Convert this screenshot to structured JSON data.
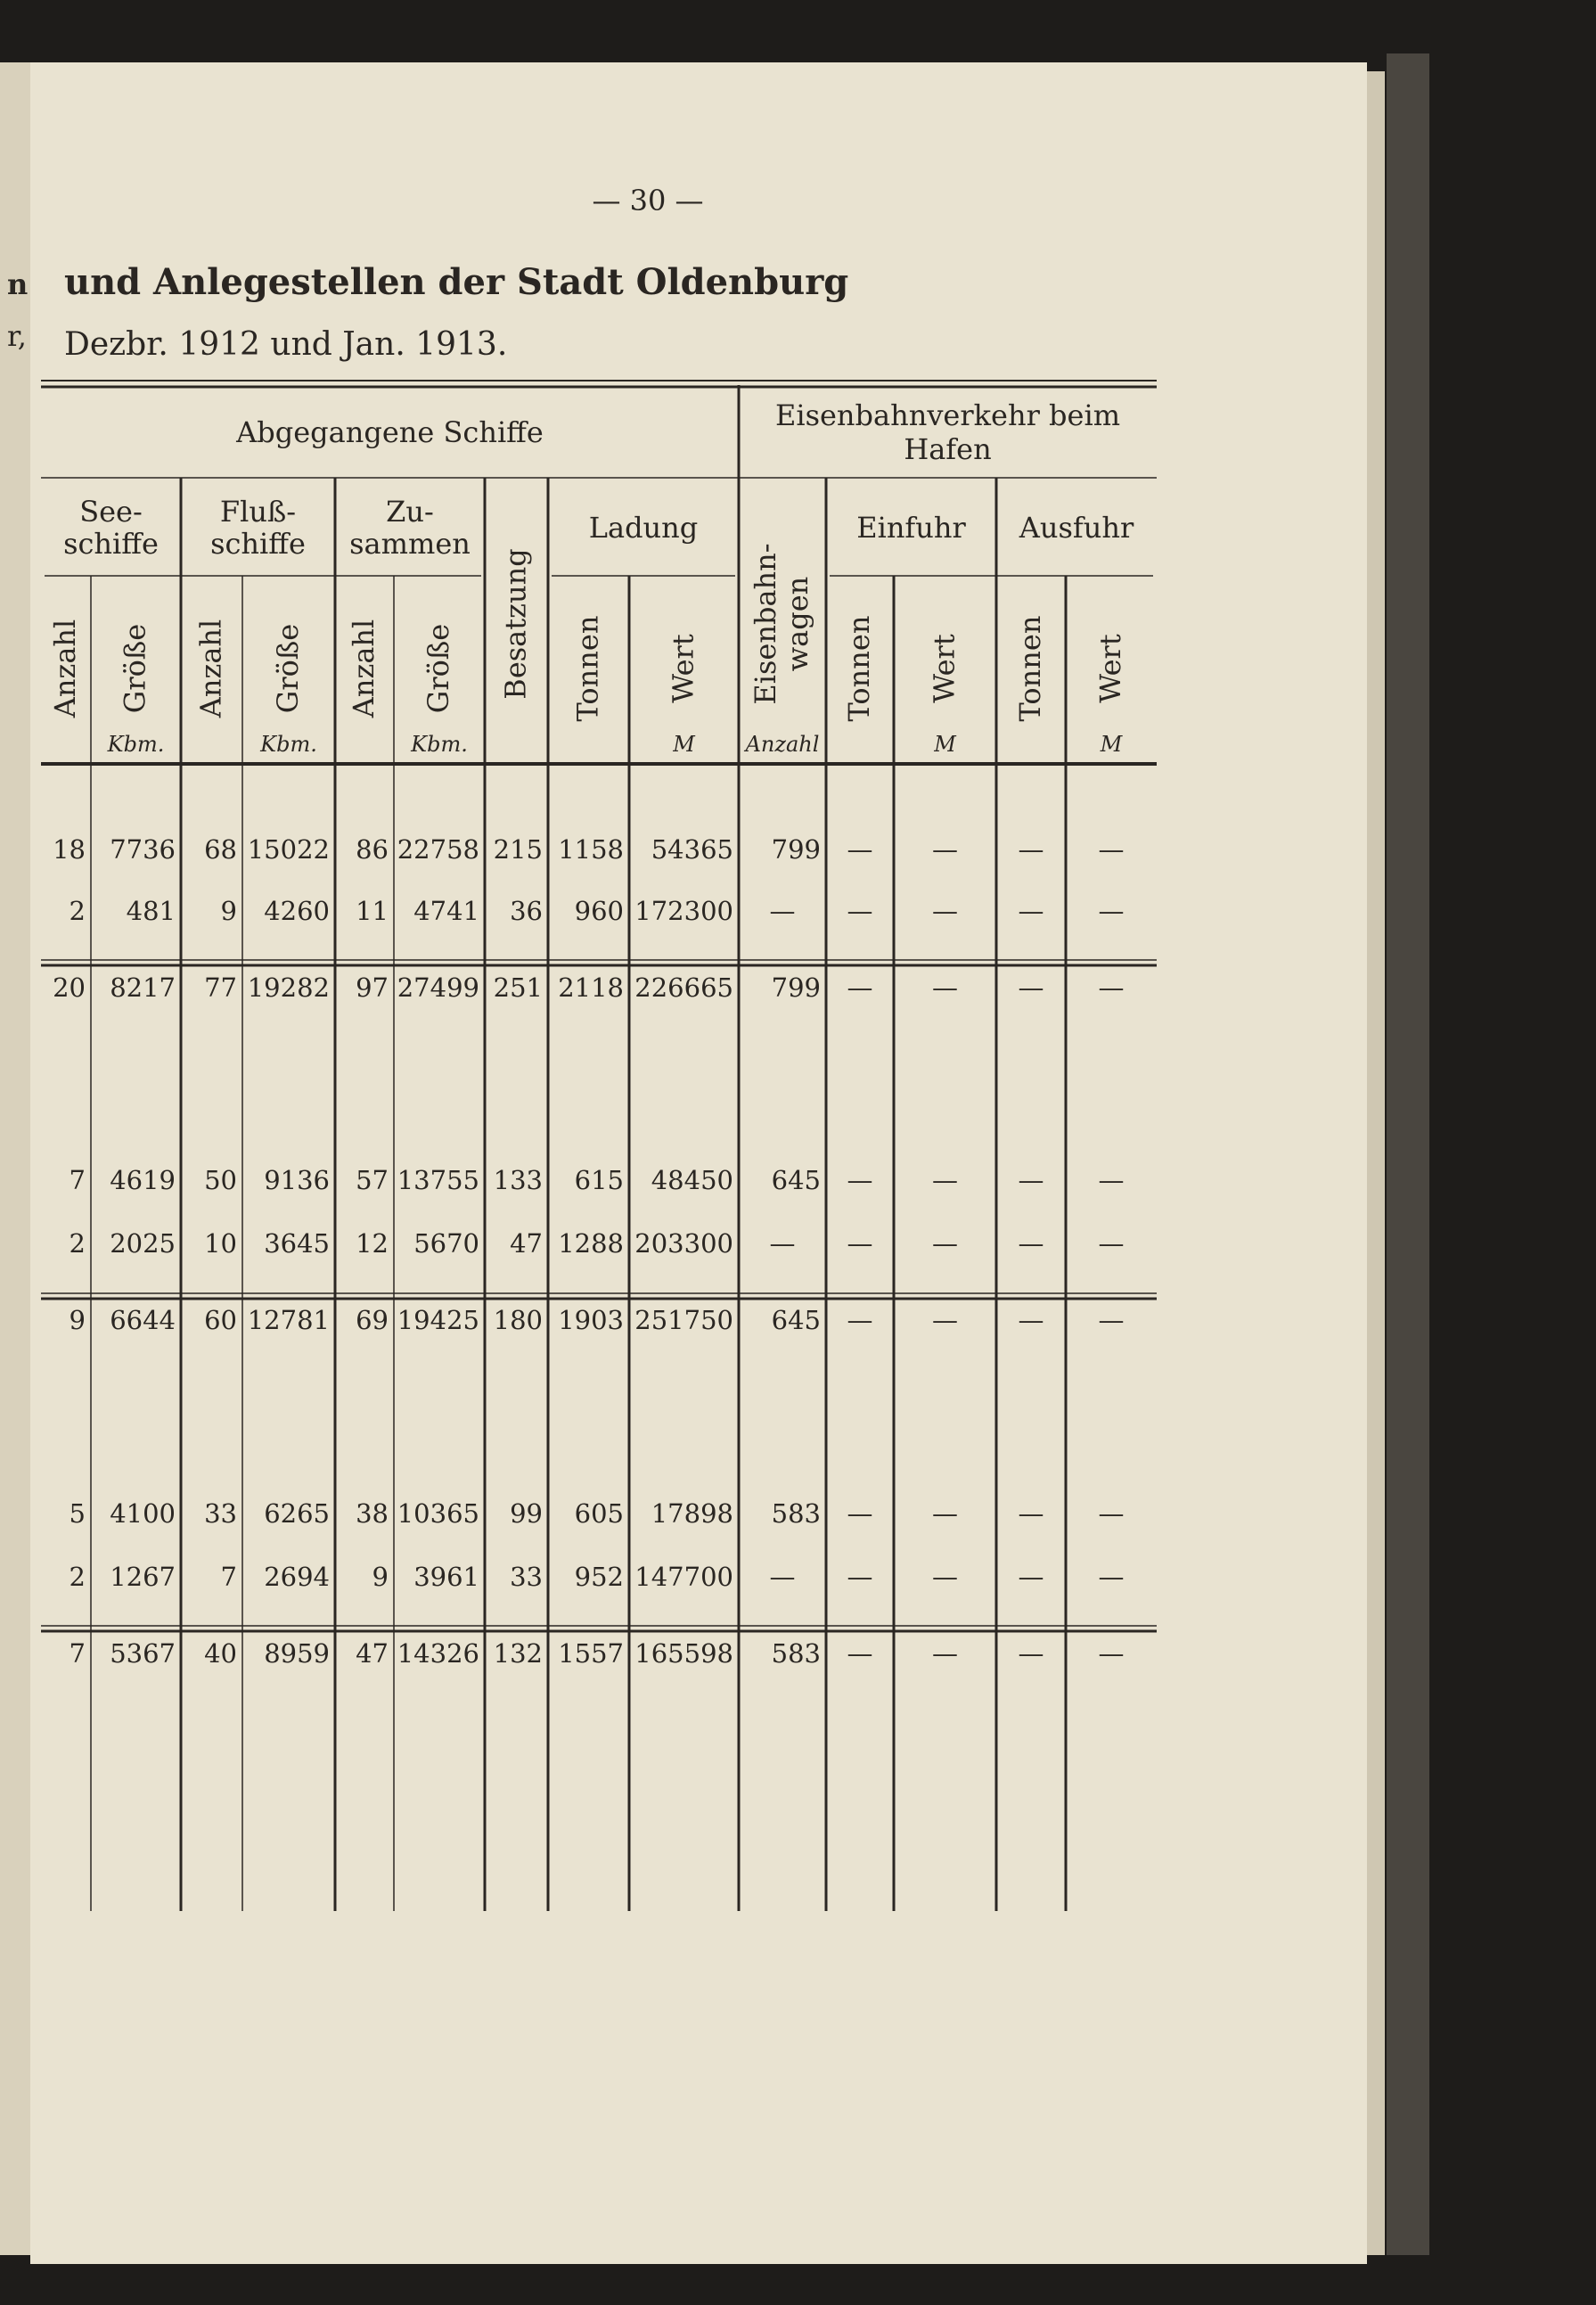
{
  "page_number": "— 30 —",
  "margin": [
    "n",
    "r,"
  ],
  "title": "und Anlegestellen der Stadt Oldenburg",
  "subtitle": "Dezbr. 1912 und Jan. 1913.",
  "table": {
    "groups": [
      [
        "Abgegangene Schiffe"
      ],
      [
        "Eisenbahnverkehr beim",
        "Hafen"
      ]
    ],
    "subgroups": [
      [
        "See-",
        "schiffe"
      ],
      [
        "Fluß-",
        "schiffe"
      ],
      [
        "Zu-",
        "sammen"
      ],
      [
        "Ladung"
      ],
      [
        "Einfuhr"
      ],
      [
        "Ausfuhr"
      ]
    ],
    "columns": [
      {
        "label": [
          "Anzahl"
        ]
      },
      {
        "label": [
          "Größe"
        ],
        "unit": "Kbm."
      },
      {
        "label": [
          "Anzahl"
        ]
      },
      {
        "label": [
          "Größe"
        ],
        "unit": "Kbm."
      },
      {
        "label": [
          "Anzahl"
        ]
      },
      {
        "label": [
          "Größe"
        ],
        "unit": "Kbm."
      },
      {
        "label": [
          "Besatzung"
        ]
      },
      {
        "label": [
          "Tonnen"
        ]
      },
      {
        "label": [
          "Wert"
        ],
        "unit": "M"
      },
      {
        "label": [
          "Eisenbahn-",
          "wagen"
        ],
        "unit": "Anzahl"
      },
      {
        "label": [
          "Tonnen"
        ]
      },
      {
        "label": [
          "Wert"
        ],
        "unit": "M"
      },
      {
        "label": [
          "Tonnen"
        ]
      },
      {
        "label": [
          "Wert"
        ],
        "unit": "M"
      }
    ],
    "rows": [
      [
        18,
        7736,
        68,
        15022,
        86,
        22758,
        215,
        1158,
        54365,
        799,
        "—",
        "—",
        "—",
        "—"
      ],
      [
        2,
        481,
        9,
        4260,
        11,
        4741,
        36,
        960,
        172300,
        "—",
        "—",
        "—",
        "—",
        "—"
      ],
      [
        20,
        8217,
        77,
        19282,
        97,
        27499,
        251,
        2118,
        226665,
        799,
        "—",
        "—",
        "—",
        "—"
      ],
      [
        7,
        4619,
        50,
        9136,
        57,
        13755,
        133,
        615,
        48450,
        645,
        "—",
        "—",
        "—",
        "—"
      ],
      [
        2,
        2025,
        10,
        3645,
        12,
        5670,
        47,
        1288,
        203300,
        "—",
        "—",
        "—",
        "—",
        "—"
      ],
      [
        9,
        6644,
        60,
        12781,
        69,
        19425,
        180,
        1903,
        251750,
        645,
        "—",
        "—",
        "—",
        "—"
      ],
      [
        5,
        4100,
        33,
        6265,
        38,
        10365,
        99,
        605,
        17898,
        583,
        "—",
        "—",
        "—",
        "—"
      ],
      [
        2,
        1267,
        7,
        2694,
        9,
        3961,
        33,
        952,
        147700,
        "—",
        "—",
        "—",
        "—",
        "—"
      ],
      [
        7,
        5367,
        40,
        8959,
        47,
        14326,
        132,
        1557,
        165598,
        583,
        "—",
        "—",
        "—",
        "—"
      ]
    ]
  }
}
